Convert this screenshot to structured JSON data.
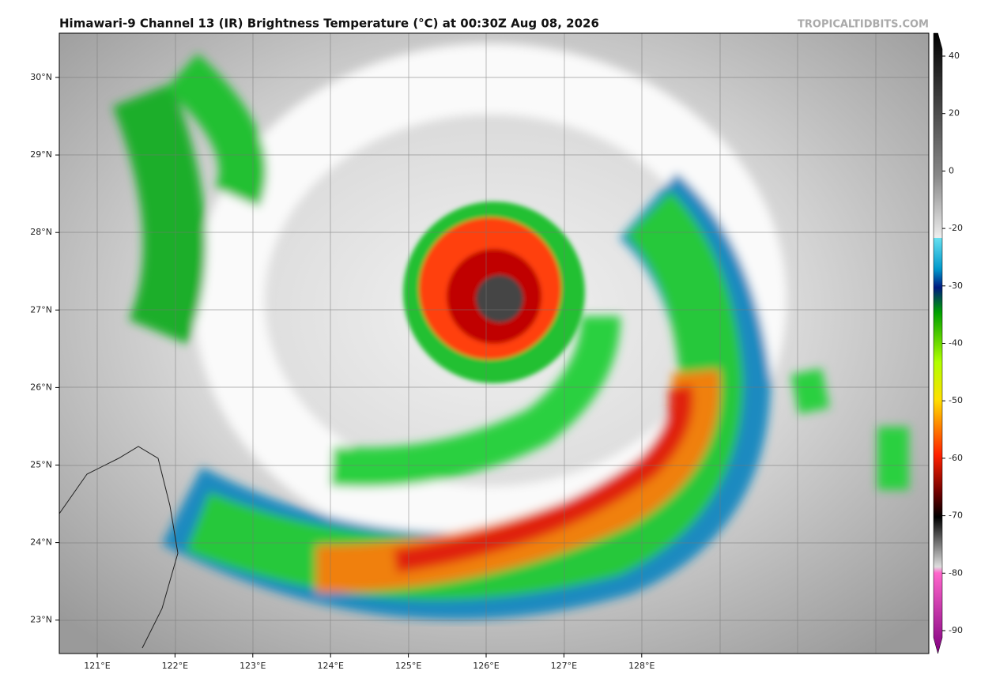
{
  "header": {
    "title": "Himawari-9 Channel 13 (IR) Brightness Temperature (°C) at 00:30Z Aug 08, 2026",
    "source": "TROPICALTIDBITS.COM"
  },
  "map": {
    "lat_labels": [
      "30°N",
      "29°N",
      "28°N",
      "27°N",
      "26°N",
      "25°N",
      "24°N",
      "23°N"
    ],
    "lon_labels": [
      "121°E",
      "122°E",
      "123°E",
      "124°E",
      "125°E",
      "126°E",
      "127°E",
      "128°E"
    ]
  },
  "colorbar": {
    "ticks": [
      40,
      20,
      0,
      -20,
      -30,
      -40,
      -50,
      -60,
      -70,
      -80,
      -90
    ]
  }
}
